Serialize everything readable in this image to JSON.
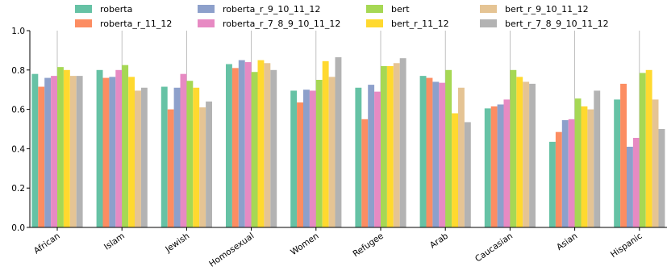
{
  "chart_data": {
    "type": "bar",
    "categories": [
      "African",
      "Islam",
      "Jewish",
      "Homosexual",
      "Women",
      "Refugee",
      "Arab",
      "Caucasian",
      "Asian",
      "Hispanic"
    ],
    "series": [
      {
        "name": "roberta",
        "color": "#66c2a5",
        "values": [
          0.78,
          0.8,
          0.715,
          0.83,
          0.695,
          0.71,
          0.77,
          0.605,
          0.435,
          0.65
        ]
      },
      {
        "name": "roberta_r_11_12",
        "color": "#fc8d62",
        "values": [
          0.715,
          0.76,
          0.6,
          0.81,
          0.635,
          0.55,
          0.76,
          0.615,
          0.485,
          0.73
        ]
      },
      {
        "name": "roberta_r_9_10_11_12",
        "color": "#8da0cb",
        "values": [
          0.76,
          0.765,
          0.71,
          0.85,
          0.7,
          0.725,
          0.74,
          0.625,
          0.545,
          0.41
        ]
      },
      {
        "name": "roberta_r_7_8_9_10_11_12",
        "color": "#e78ac3",
        "values": [
          0.77,
          0.8,
          0.78,
          0.84,
          0.695,
          0.69,
          0.735,
          0.65,
          0.55,
          0.455
        ]
      },
      {
        "name": "bert",
        "color": "#a6d854",
        "values": [
          0.815,
          0.825,
          0.745,
          0.79,
          0.75,
          0.82,
          0.8,
          0.8,
          0.655,
          0.785
        ]
      },
      {
        "name": "bert_r_11_12",
        "color": "#ffd92f",
        "values": [
          0.8,
          0.765,
          0.71,
          0.85,
          0.845,
          0.82,
          0.58,
          0.765,
          0.615,
          0.8
        ]
      },
      {
        "name": "bert_r_9_10_11_12",
        "color": "#e5c494",
        "values": [
          0.77,
          0.695,
          0.61,
          0.835,
          0.765,
          0.835,
          0.71,
          0.74,
          0.6,
          0.65
        ]
      },
      {
        "name": "bert_r_7_8_9_10_11_12",
        "color": "#b3b3b3",
        "values": [
          0.77,
          0.71,
          0.64,
          0.8,
          0.865,
          0.86,
          0.535,
          0.73,
          0.695,
          0.5
        ]
      }
    ],
    "ylim": [
      0.0,
      1.0
    ],
    "yticks": [
      "0.0",
      "0.2",
      "0.4",
      "0.6",
      "0.8",
      "1.0"
    ],
    "xlabel": "",
    "ylabel": "",
    "grid": "vertical, x-axis only",
    "legend_placement": "top-center, 4 columns"
  }
}
